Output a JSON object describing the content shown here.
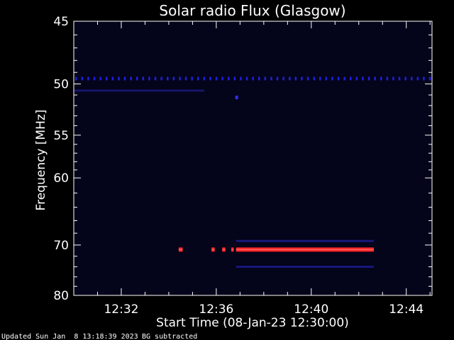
{
  "chart_data": {
    "type": "heatmap",
    "title": "Solar radio Flux (Glasgow)",
    "xlabel": "Start Time (08-Jan-23 12:30:00)",
    "ylabel": "Frequency [MHz]",
    "xlim": [
      "12:30:00",
      "12:45:05"
    ],
    "x_ticks": [
      "12:32",
      "12:36",
      "12:40",
      "12:44"
    ],
    "ylim": [
      80,
      45
    ],
    "y_ticks": [
      45,
      50,
      55,
      60,
      70,
      80
    ],
    "colors": {
      "background": "#000000",
      "plot_background": "#04041a",
      "axis": "#ffffff",
      "weak_emission": "#1a1ab0",
      "strong_emission": "#ff2020"
    },
    "features": [
      {
        "kind": "dotted_line",
        "freq_mhz": 49.5,
        "start": "12:30:00",
        "end": "12:45:05",
        "intensity": "medium",
        "color": "#2020e0"
      },
      {
        "kind": "faint_line",
        "freq_mhz": 50.6,
        "start": "12:30:00",
        "end": "12:35:30",
        "intensity": "weak",
        "color": "#1a1a7a"
      },
      {
        "kind": "spot",
        "freq_mhz": 51.2,
        "start": "12:36:48",
        "end": "12:36:55",
        "intensity": "medium",
        "color": "#3030ff"
      },
      {
        "kind": "band",
        "freq_mhz": 70.8,
        "start": "12:36:50",
        "end": "12:42:38",
        "intensity": "strong",
        "color": "#ff2020"
      },
      {
        "kind": "band",
        "freq_mhz": 70.8,
        "start": "12:34:25",
        "end": "12:34:35",
        "intensity": "strong",
        "color": "#ff2020"
      },
      {
        "kind": "band",
        "freq_mhz": 70.8,
        "start": "12:35:48",
        "end": "12:35:56",
        "intensity": "strong",
        "color": "#ff2020"
      },
      {
        "kind": "band",
        "freq_mhz": 70.8,
        "start": "12:36:15",
        "end": "12:36:23",
        "intensity": "strong",
        "color": "#ff2020"
      },
      {
        "kind": "band",
        "freq_mhz": 70.8,
        "start": "12:36:38",
        "end": "12:36:44",
        "intensity": "strong",
        "color": "#ff2020"
      },
      {
        "kind": "faint_line",
        "freq_mhz": 69.3,
        "start": "12:36:50",
        "end": "12:42:38",
        "intensity": "weak",
        "color": "#1c1c90"
      },
      {
        "kind": "faint_line",
        "freq_mhz": 74.0,
        "start": "12:36:50",
        "end": "12:42:38",
        "intensity": "weak",
        "color": "#1c1c90"
      }
    ]
  },
  "footer": {
    "updated": "Updated Sun Jan  8 13:18:39 2023",
    "note": "BG subtracted"
  }
}
